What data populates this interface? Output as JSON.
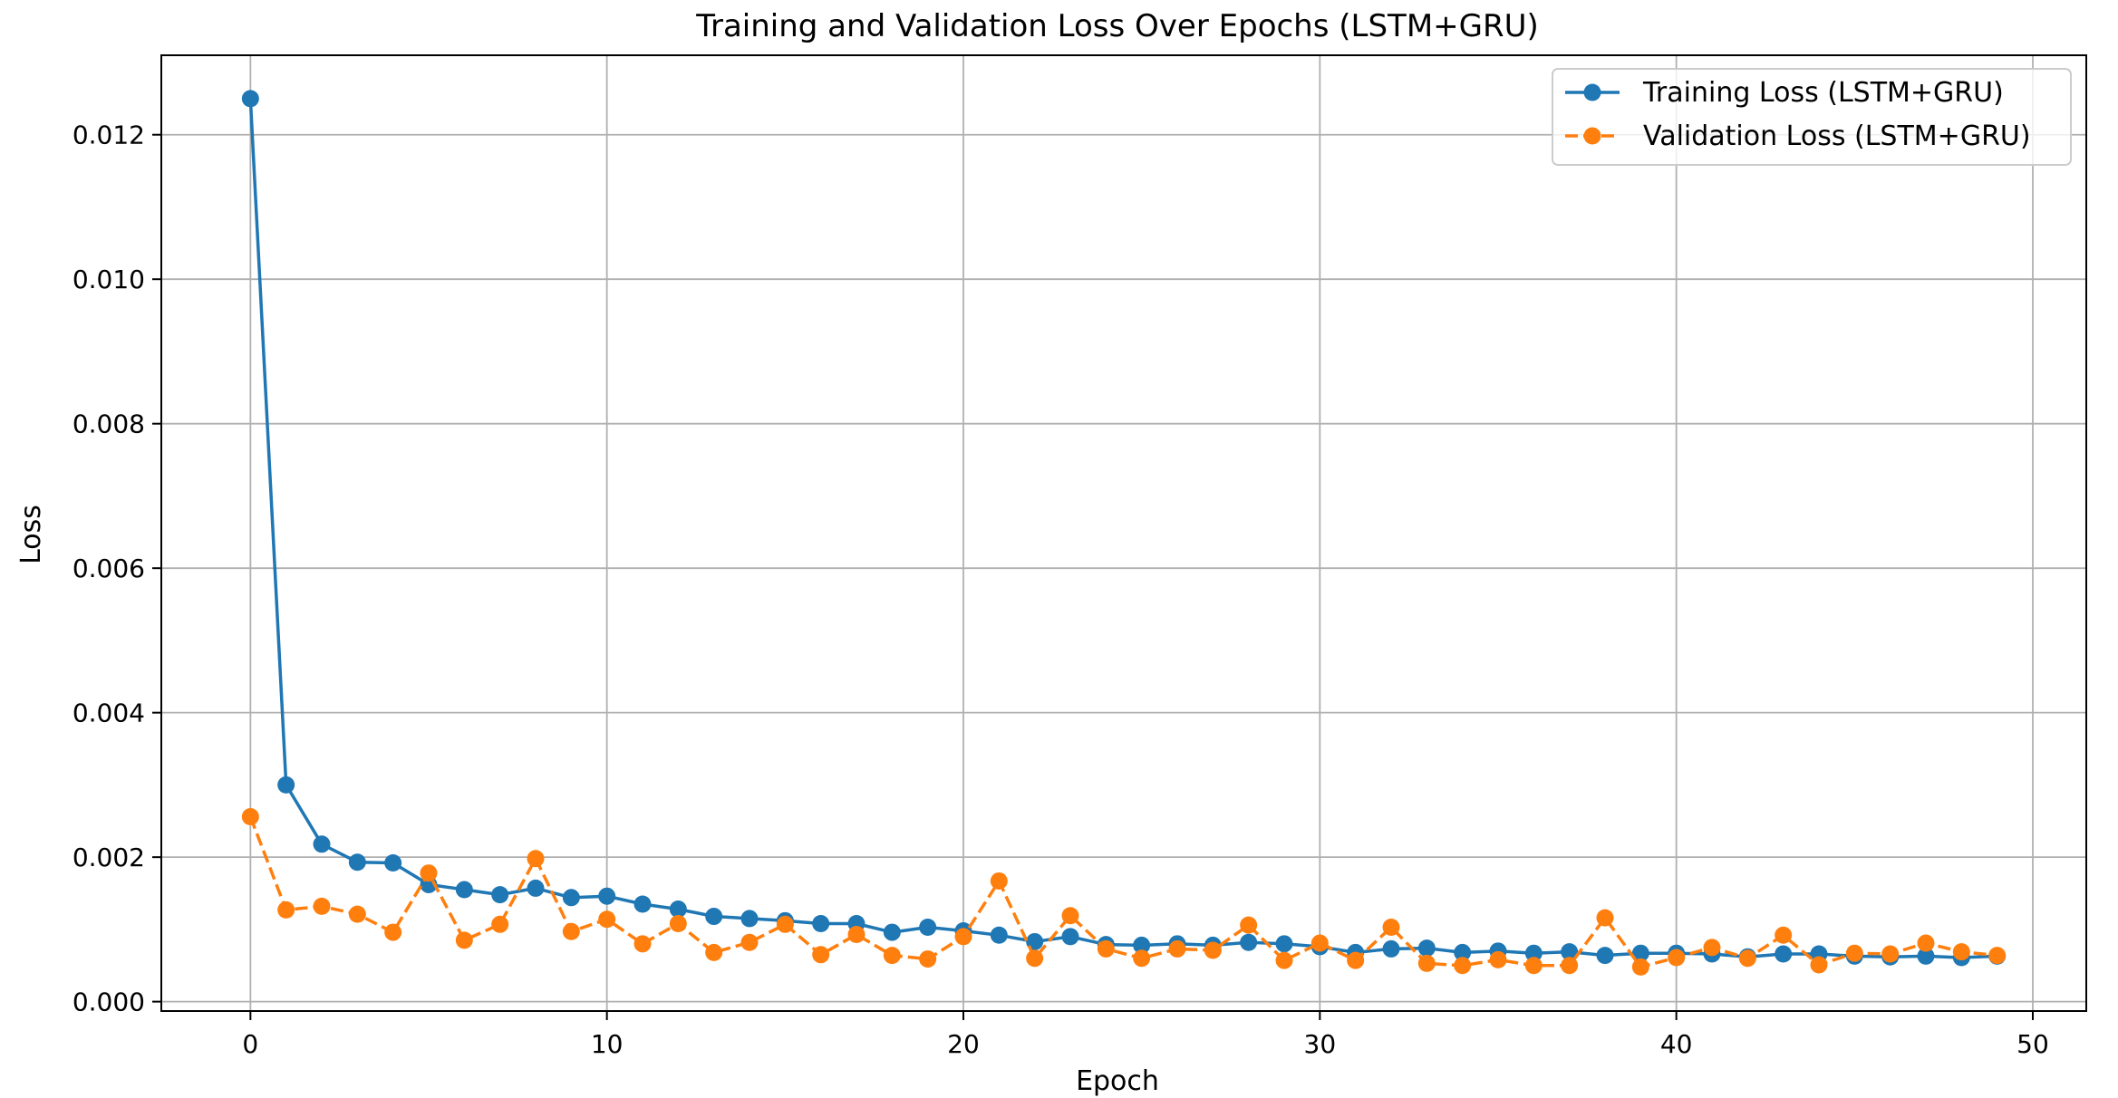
{
  "chart_data": {
    "type": "line",
    "title": "Training and Validation Loss Over Epochs (LSTM+GRU)",
    "xlabel": "Epoch",
    "ylabel": "Loss",
    "xlim": [
      -2.5,
      51.5
    ],
    "ylim": [
      -0.00013,
      0.0131
    ],
    "xticks": [
      0,
      10,
      20,
      30,
      40,
      50
    ],
    "yticks": [
      0.0,
      0.002,
      0.004,
      0.006,
      0.008,
      0.01,
      0.012
    ],
    "ytick_labels": [
      "0.000",
      "0.002",
      "0.004",
      "0.006",
      "0.008",
      "0.010",
      "0.012"
    ],
    "grid": true,
    "legend_position": "top-right",
    "x": [
      0,
      1,
      2,
      3,
      4,
      5,
      6,
      7,
      8,
      9,
      10,
      11,
      12,
      13,
      14,
      15,
      16,
      17,
      18,
      19,
      20,
      21,
      22,
      23,
      24,
      25,
      26,
      27,
      28,
      29,
      30,
      31,
      32,
      33,
      34,
      35,
      36,
      37,
      38,
      39,
      40,
      41,
      42,
      43,
      44,
      45,
      46,
      47,
      48,
      49
    ],
    "series": [
      {
        "name": "Training Loss (LSTM+GRU)",
        "color": "#1f77b4",
        "linestyle": "solid",
        "values": [
          0.0125,
          0.003,
          0.00218,
          0.00193,
          0.00192,
          0.00162,
          0.00155,
          0.00148,
          0.00157,
          0.00144,
          0.00146,
          0.00135,
          0.00128,
          0.00118,
          0.00115,
          0.00112,
          0.00108,
          0.00108,
          0.00096,
          0.00103,
          0.00098,
          0.00092,
          0.00083,
          0.0009,
          0.00079,
          0.00078,
          0.0008,
          0.00078,
          0.00082,
          0.0008,
          0.00076,
          0.00068,
          0.00073,
          0.00074,
          0.00068,
          0.0007,
          0.00067,
          0.00069,
          0.00064,
          0.00067,
          0.00067,
          0.00066,
          0.00062,
          0.00066,
          0.00066,
          0.00063,
          0.00062,
          0.00063,
          0.00061,
          0.00063
        ]
      },
      {
        "name": "Validation Loss (LSTM+GRU)",
        "color": "#ff7f0e",
        "linestyle": "dashed",
        "values": [
          0.00256,
          0.00127,
          0.00132,
          0.00121,
          0.00096,
          0.00178,
          0.00085,
          0.00107,
          0.00198,
          0.00097,
          0.00114,
          0.0008,
          0.00108,
          0.00068,
          0.00082,
          0.00107,
          0.00065,
          0.00093,
          0.00064,
          0.00059,
          0.0009,
          0.00167,
          0.0006,
          0.00119,
          0.00073,
          0.0006,
          0.00073,
          0.00071,
          0.00106,
          0.00057,
          0.00081,
          0.00057,
          0.00103,
          0.00053,
          0.0005,
          0.00058,
          0.0005,
          0.0005,
          0.00116,
          0.00048,
          0.00061,
          0.00075,
          0.0006,
          0.00092,
          0.00051,
          0.00067,
          0.00066,
          0.00081,
          0.00069,
          0.00064
        ]
      }
    ]
  }
}
